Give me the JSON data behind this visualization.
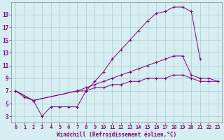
{
  "background_color": "#d6eef2",
  "grid_color": "#aacccc",
  "line_color": "#800080",
  "xlabel": "Windchill (Refroidissement éolien,°C)",
  "xlim": [
    -0.5,
    23.5
  ],
  "ylim": [
    2,
    21
  ],
  "xticks": [
    0,
    1,
    2,
    3,
    4,
    5,
    6,
    7,
    8,
    9,
    10,
    11,
    12,
    13,
    14,
    15,
    16,
    17,
    18,
    19,
    20,
    21,
    22,
    23
  ],
  "yticks": [
    3,
    5,
    7,
    9,
    11,
    13,
    15,
    17,
    19
  ],
  "curve1_x": [
    0,
    1,
    2,
    3,
    4,
    5,
    6,
    7,
    8,
    9,
    10,
    11,
    12,
    13,
    14,
    15,
    16,
    17,
    18,
    19,
    20,
    21
  ],
  "curve1_y": [
    7,
    6,
    5.5,
    3,
    4.5,
    4.5,
    4.5,
    4.5,
    7,
    8.5,
    10,
    12,
    13.5,
    15,
    16.5,
    18,
    19.2,
    19.5,
    20.2,
    20.2,
    19.5,
    12
  ],
  "curve2_x": [
    0,
    2,
    7,
    8,
    9,
    10,
    11,
    12,
    13,
    14,
    15,
    16,
    17,
    18,
    19,
    20,
    21,
    22,
    23
  ],
  "curve2_y": [
    7,
    5.5,
    7,
    7.5,
    8,
    8.5,
    9,
    9.5,
    10,
    10.5,
    11,
    11.5,
    12,
    12.5,
    12.5,
    9.5,
    9,
    9,
    8.5
  ],
  "curve3_x": [
    0,
    2,
    7,
    8,
    9,
    10,
    11,
    12,
    13,
    14,
    15,
    16,
    17,
    18,
    19,
    20,
    21,
    22,
    23
  ],
  "curve3_y": [
    7,
    5.5,
    7,
    7,
    7.5,
    7.5,
    8,
    8,
    8.5,
    8.5,
    9,
    9,
    9,
    9.5,
    9.5,
    9,
    8.5,
    8.5,
    8.5
  ]
}
